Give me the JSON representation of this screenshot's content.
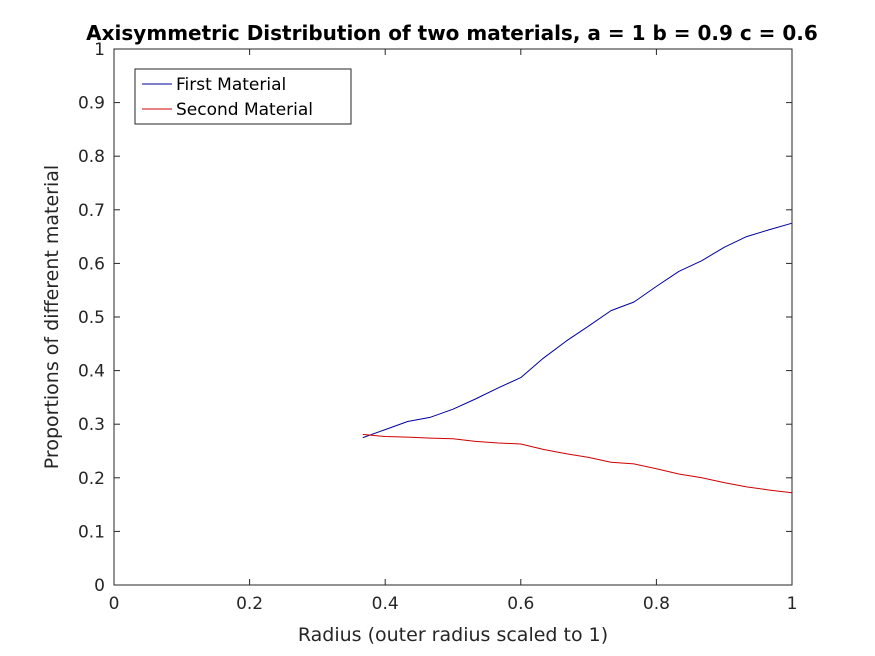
{
  "chart_data": {
    "type": "line",
    "title": "Axisymmetric Distribution of two materials, a = 1 b = 0.9 c = 0.6",
    "xlabel": "Radius (outer radius scaled to 1)",
    "ylabel": "Proportions of different material",
    "xlim": [
      0,
      1
    ],
    "ylim": [
      0,
      1
    ],
    "xticks": [
      0,
      0.2,
      0.4,
      0.6,
      0.8,
      1
    ],
    "xtick_labels": [
      "0",
      "0.2",
      "0.4",
      "0.6",
      "0.8",
      "1"
    ],
    "yticks": [
      0,
      0.1,
      0.2,
      0.3,
      0.4,
      0.5,
      0.6,
      0.7,
      0.8,
      0.9,
      1
    ],
    "ytick_labels": [
      "0",
      "0.1",
      "0.2",
      "0.3",
      "0.4",
      "0.5",
      "0.6",
      "0.7",
      "0.8",
      "0.9",
      "1"
    ],
    "grid": false,
    "legend_position": "top-left",
    "series": [
      {
        "name": "First Material",
        "color": "#0000a0",
        "x": [
          0.367,
          0.4,
          0.433,
          0.467,
          0.5,
          0.533,
          0.567,
          0.6,
          0.633,
          0.667,
          0.7,
          0.733,
          0.767,
          0.8,
          0.833,
          0.867,
          0.9,
          0.933,
          0.967,
          1.0
        ],
        "y": [
          0.275,
          0.29,
          0.305,
          0.313,
          0.328,
          0.347,
          0.368,
          0.387,
          0.423,
          0.455,
          0.483,
          0.512,
          0.528,
          0.557,
          0.585,
          0.605,
          0.63,
          0.65,
          0.663,
          0.675
        ]
      },
      {
        "name": "Second Material",
        "color": "#d00000",
        "x": [
          0.367,
          0.4,
          0.433,
          0.467,
          0.5,
          0.533,
          0.567,
          0.6,
          0.633,
          0.667,
          0.7,
          0.733,
          0.767,
          0.8,
          0.833,
          0.867,
          0.9,
          0.933,
          0.967,
          1.0
        ],
        "y": [
          0.281,
          0.277,
          0.276,
          0.274,
          0.273,
          0.268,
          0.265,
          0.263,
          0.253,
          0.245,
          0.238,
          0.229,
          0.226,
          0.217,
          0.207,
          0.2,
          0.191,
          0.183,
          0.177,
          0.172
        ]
      }
    ]
  }
}
